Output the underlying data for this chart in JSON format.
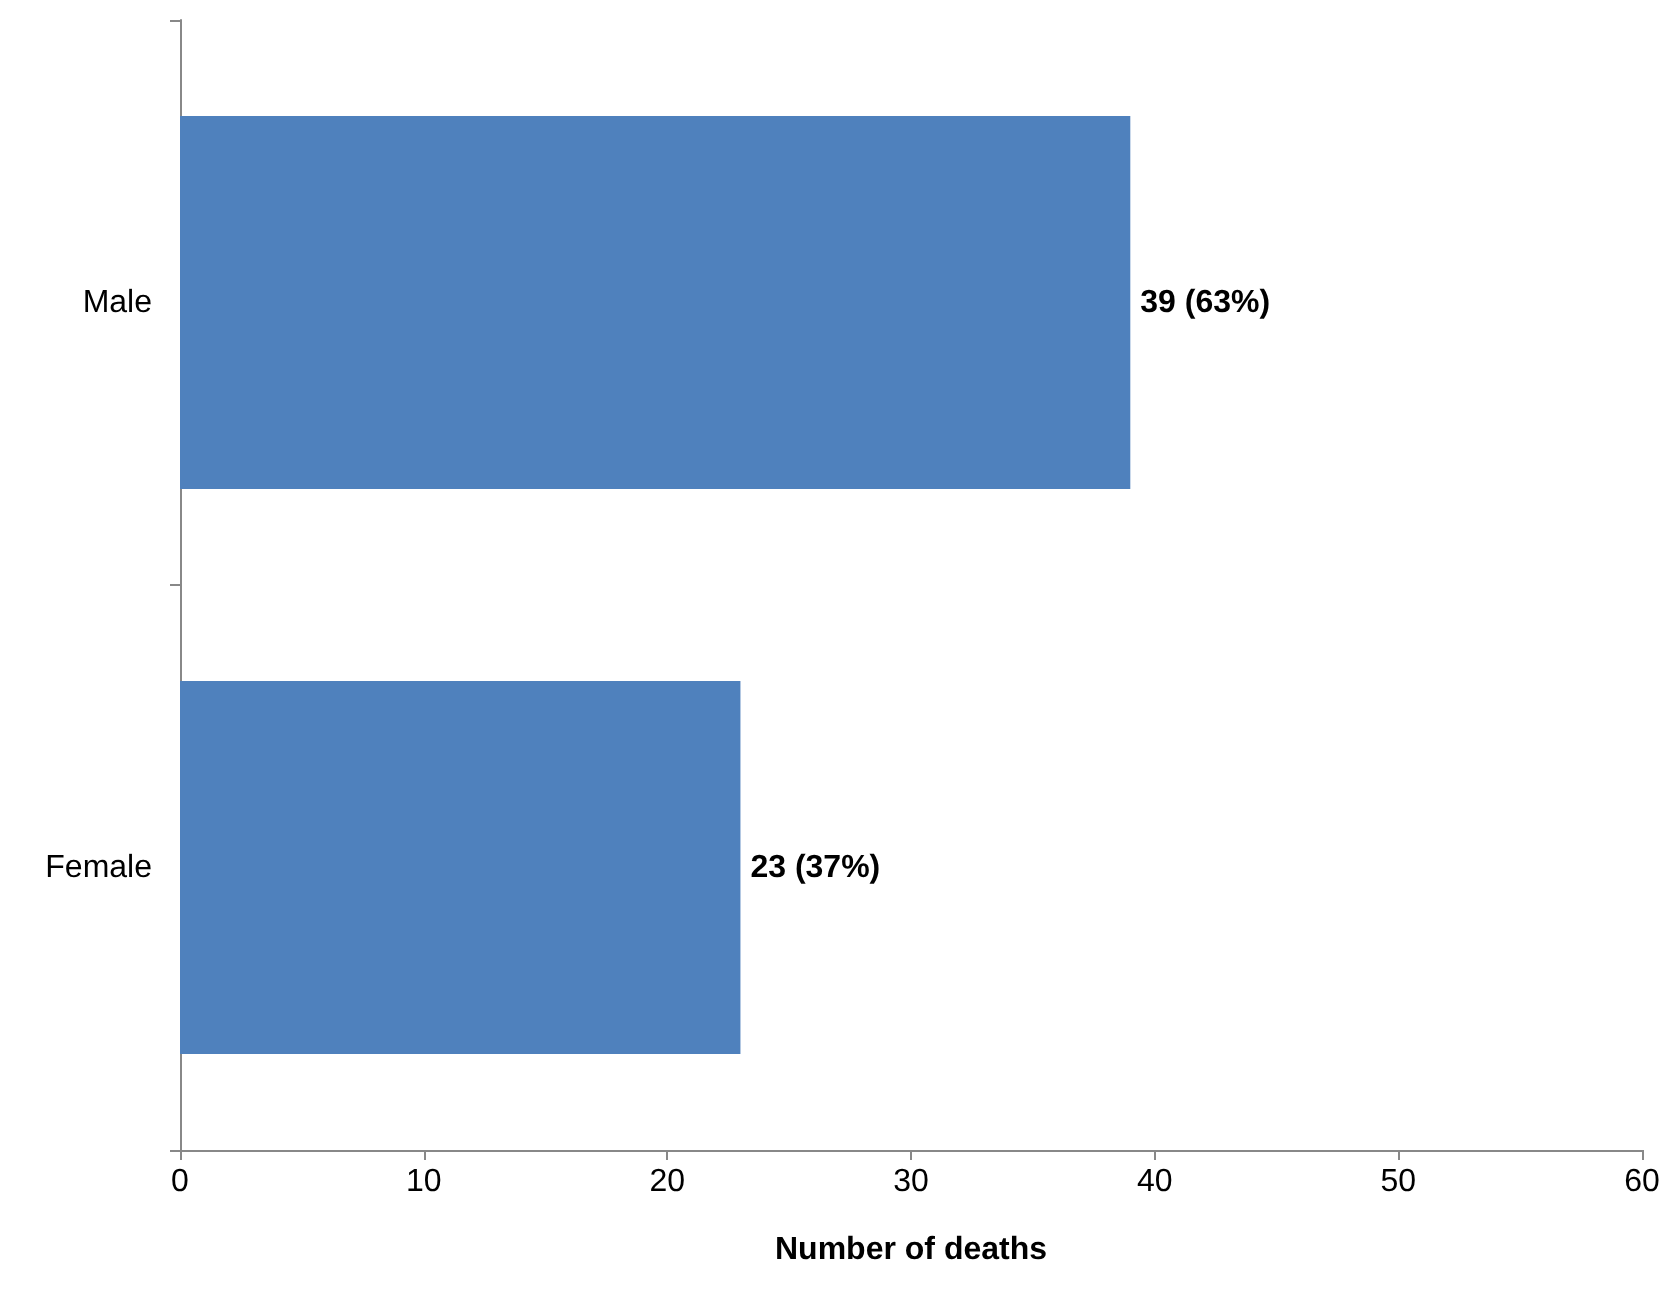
{
  "chart_data": {
    "type": "bar",
    "orientation": "horizontal",
    "categories": [
      "Male",
      "Female"
    ],
    "series": [
      {
        "color": "#4f81bd",
        "values": [
          39,
          23
        ],
        "value_labels": [
          "39 (63%)",
          "23 (37%)"
        ]
      }
    ],
    "xlabel": "Number of deaths",
    "xlim": [
      0,
      60
    ],
    "xticks": [
      0,
      10,
      20,
      30,
      40,
      50,
      60
    ],
    "grid": false
  }
}
